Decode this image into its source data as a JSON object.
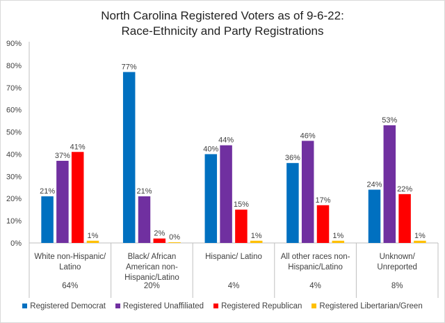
{
  "chart_data": {
    "type": "bar",
    "title": "North Carolina Registered Voters as of 9-6-22:",
    "subtitle": "Race-Ethnicity and Party Registrations",
    "categories": [
      [
        "White non-Hispanic/",
        "Latino"
      ],
      [
        "Black/ African",
        "American non-",
        "Hispanic/Latino"
      ],
      [
        "Hispanic/ Latino"
      ],
      [
        "All other races non-",
        "Hispanic/Latino"
      ],
      [
        "Unknown/",
        "Unreported"
      ]
    ],
    "category_shares": [
      "64%",
      "20%",
      "4%",
      "4%",
      "8%"
    ],
    "series": [
      {
        "name": "Registered Democrat",
        "color": "#0070C0",
        "values": [
          21,
          77,
          40,
          36,
          24
        ],
        "labels": [
          "21%",
          "77%",
          "40%",
          "36%",
          "24%"
        ]
      },
      {
        "name": "Registered Unaffiliated",
        "color": "#7030A0",
        "values": [
          37,
          21,
          44,
          46,
          53
        ],
        "labels": [
          "37%",
          "21%",
          "44%",
          "46%",
          "53%"
        ]
      },
      {
        "name": "Registered Republican",
        "color": "#FF0000",
        "values": [
          41,
          2,
          15,
          17,
          22
        ],
        "labels": [
          "41%",
          "2%",
          "15%",
          "17%",
          "22%"
        ]
      },
      {
        "name": "Registered Libertarian/Green",
        "color": "#FFC000",
        "values": [
          1,
          0.3,
          1,
          1,
          1
        ],
        "labels": [
          "1%",
          "0%",
          "1%",
          "1%",
          "1%"
        ]
      }
    ],
    "yticks": [
      "0%",
      "10%",
      "20%",
      "30%",
      "40%",
      "50%",
      "60%",
      "70%",
      "80%",
      "90%"
    ],
    "ylim": [
      0,
      90
    ],
    "grid": false,
    "legend": "bottom"
  }
}
